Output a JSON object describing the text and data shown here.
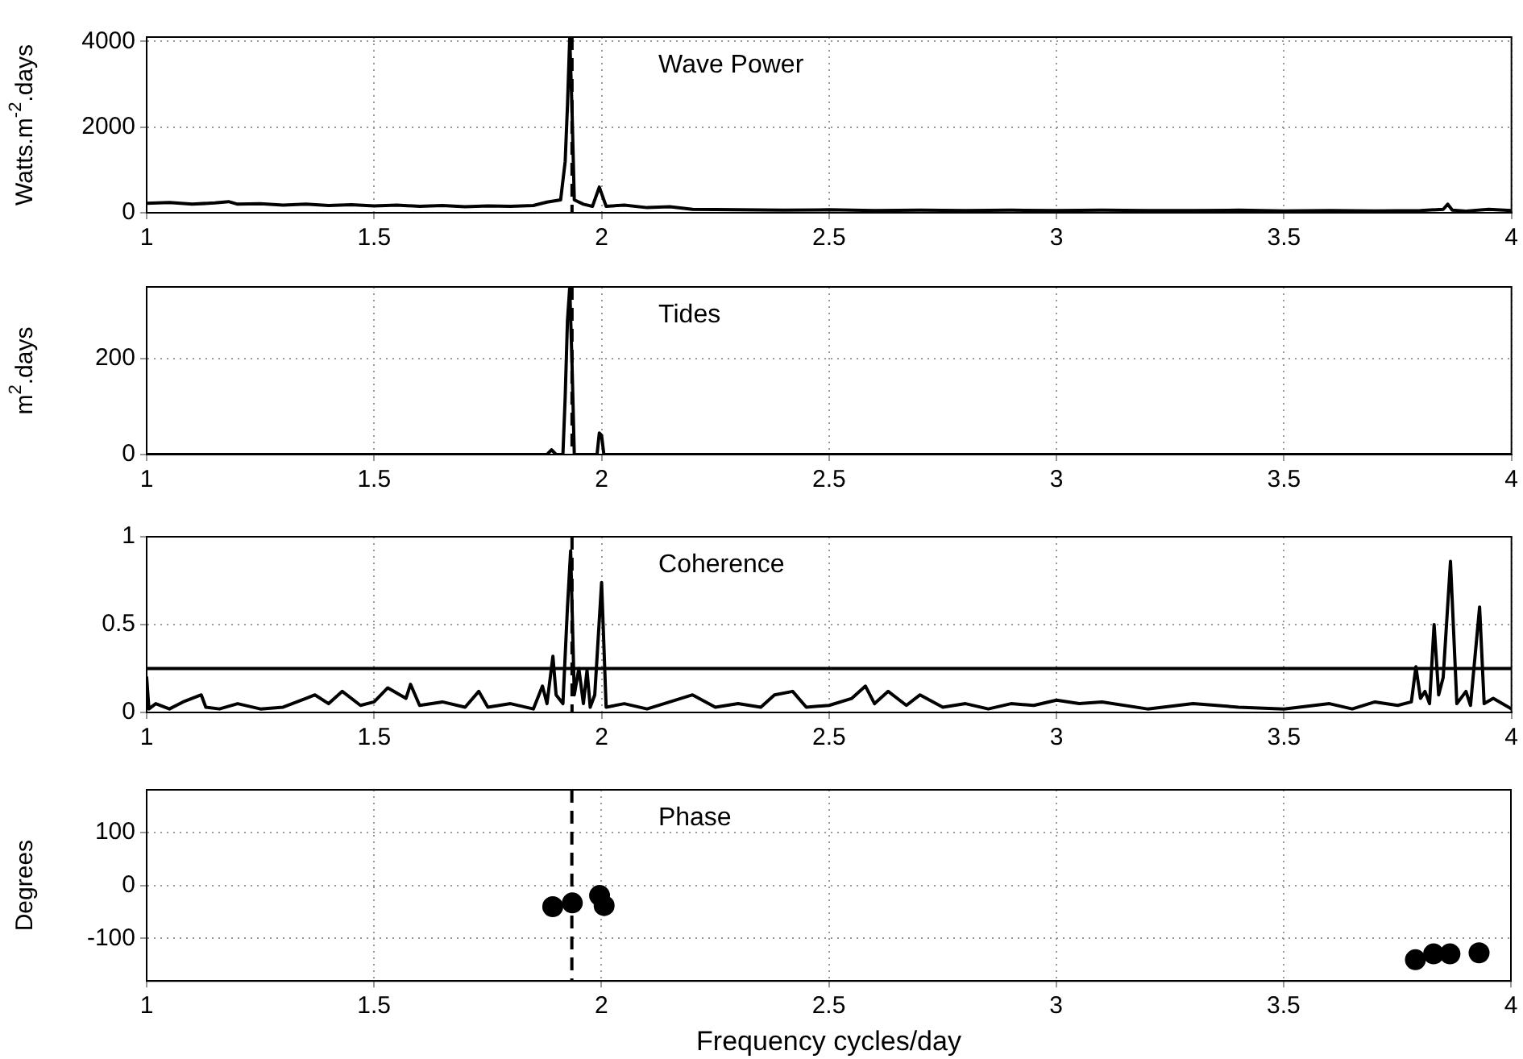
{
  "chart_data": [
    {
      "type": "line",
      "title": "Wave Power",
      "ylabel": "Watts.m$^{-2}$.days",
      "color": "#000000",
      "line_style": "solid",
      "x": [
        1.0,
        1.05,
        1.1,
        1.15,
        1.18,
        1.2,
        1.25,
        1.3,
        1.35,
        1.4,
        1.45,
        1.5,
        1.55,
        1.6,
        1.65,
        1.7,
        1.75,
        1.8,
        1.85,
        1.88,
        1.91,
        1.92,
        1.925,
        1.93,
        1.935,
        1.94,
        1.96,
        1.98,
        1.995,
        2.0,
        2.01,
        2.05,
        2.1,
        2.15,
        2.2,
        2.3,
        2.4,
        2.5,
        2.6,
        2.7,
        2.8,
        2.9,
        3.0,
        3.1,
        3.2,
        3.3,
        3.4,
        3.5,
        3.6,
        3.7,
        3.8,
        3.85,
        3.86,
        3.87,
        3.9,
        3.95,
        4.0
      ],
      "values": [
        220,
        240,
        200,
        230,
        260,
        200,
        210,
        180,
        200,
        170,
        190,
        160,
        180,
        150,
        170,
        140,
        160,
        150,
        170,
        250,
        300,
        1200,
        2500,
        4100,
        2400,
        300,
        200,
        150,
        600,
        450,
        150,
        180,
        120,
        140,
        80,
        70,
        60,
        70,
        50,
        60,
        50,
        60,
        50,
        60,
        50,
        50,
        60,
        40,
        50,
        40,
        50,
        80,
        200,
        60,
        40,
        80,
        50
      ],
      "xlim": [
        1,
        4
      ],
      "xticks": [
        1,
        1.5,
        2,
        2.5,
        3,
        3.5,
        4
      ],
      "ylim": [
        0,
        4100
      ],
      "yticks": [
        0,
        2000,
        4000
      ],
      "grid": true,
      "ref_lines": [
        {
          "axis": "x",
          "value": 1.935,
          "line_style": "dashed",
          "color": "#000000"
        }
      ]
    },
    {
      "type": "line",
      "title": "Tides",
      "ylabel": "m$^{2}$.days",
      "color": "#000000",
      "line_style": "solid",
      "x": [
        1.0,
        1.88,
        1.89,
        1.9,
        1.915,
        1.92,
        1.925,
        1.93,
        1.935,
        1.94,
        1.99,
        1.995,
        2.0,
        2.005,
        4.0
      ],
      "values": [
        0,
        0,
        10,
        0,
        0,
        120,
        280,
        350,
        190,
        0,
        0,
        45,
        40,
        0,
        0
      ],
      "xlim": [
        1,
        4
      ],
      "xticks": [
        1,
        1.5,
        2,
        2.5,
        3,
        3.5,
        4
      ],
      "ylim": [
        0,
        350
      ],
      "yticks": [
        0,
        200
      ],
      "grid": true,
      "ref_lines": [
        {
          "axis": "x",
          "value": 1.935,
          "line_style": "dashed",
          "color": "#000000"
        }
      ]
    },
    {
      "type": "line",
      "title": "Coherence",
      "color": "#000000",
      "line_style": "solid",
      "x": [
        1.0,
        1.005,
        1.02,
        1.05,
        1.08,
        1.12,
        1.13,
        1.16,
        1.2,
        1.25,
        1.3,
        1.35,
        1.37,
        1.4,
        1.43,
        1.47,
        1.5,
        1.53,
        1.57,
        1.58,
        1.6,
        1.65,
        1.7,
        1.73,
        1.75,
        1.8,
        1.85,
        1.87,
        1.88,
        1.893,
        1.9,
        1.915,
        1.925,
        1.932,
        1.94,
        1.95,
        1.96,
        1.968,
        1.975,
        1.985,
        2.0,
        2.01,
        2.05,
        2.1,
        2.15,
        2.2,
        2.25,
        2.3,
        2.35,
        2.38,
        2.42,
        2.45,
        2.5,
        2.55,
        2.58,
        2.6,
        2.63,
        2.67,
        2.7,
        2.75,
        2.8,
        2.85,
        2.9,
        2.95,
        3.0,
        3.05,
        3.1,
        3.2,
        3.3,
        3.4,
        3.5,
        3.6,
        3.65,
        3.7,
        3.75,
        3.78,
        3.79,
        3.8,
        3.81,
        3.82,
        3.83,
        3.84,
        3.85,
        3.866,
        3.88,
        3.9,
        3.91,
        3.93,
        3.94,
        3.96,
        4.0
      ],
      "values": [
        0.2,
        0.02,
        0.05,
        0.02,
        0.06,
        0.1,
        0.03,
        0.02,
        0.05,
        0.02,
        0.03,
        0.08,
        0.1,
        0.05,
        0.12,
        0.04,
        0.06,
        0.14,
        0.08,
        0.16,
        0.04,
        0.06,
        0.03,
        0.12,
        0.03,
        0.05,
        0.02,
        0.15,
        0.05,
        0.32,
        0.1,
        0.05,
        0.6,
        0.92,
        0.1,
        0.25,
        0.05,
        0.24,
        0.03,
        0.1,
        0.74,
        0.03,
        0.05,
        0.02,
        0.06,
        0.1,
        0.03,
        0.05,
        0.03,
        0.1,
        0.12,
        0.03,
        0.04,
        0.08,
        0.15,
        0.05,
        0.12,
        0.04,
        0.1,
        0.03,
        0.05,
        0.02,
        0.05,
        0.04,
        0.07,
        0.05,
        0.06,
        0.02,
        0.05,
        0.03,
        0.02,
        0.05,
        0.02,
        0.06,
        0.04,
        0.06,
        0.26,
        0.08,
        0.12,
        0.05,
        0.5,
        0.1,
        0.2,
        0.86,
        0.05,
        0.12,
        0.04,
        0.6,
        0.05,
        0.08,
        0.02
      ],
      "xlim": [
        1,
        4
      ],
      "xticks": [
        1,
        1.5,
        2,
        2.5,
        3,
        3.5,
        4
      ],
      "ylim": [
        0,
        1
      ],
      "yticks": [
        0,
        0.5,
        1
      ],
      "grid": true,
      "ref_lines": [
        {
          "axis": "x",
          "value": 1.935,
          "line_style": "dashed",
          "color": "#000000"
        },
        {
          "axis": "y",
          "value": 0.25,
          "line_style": "solid",
          "color": "#000000"
        }
      ]
    },
    {
      "type": "scatter",
      "title": "Phase",
      "xlabel": "Frequency cycles/day",
      "ylabel": "Degrees",
      "color": "#000000",
      "marker": "circle",
      "x": [
        1.893,
        1.936,
        1.996,
        2.006,
        3.79,
        3.83,
        3.866,
        3.93
      ],
      "values": [
        -40,
        -33,
        -19,
        -38,
        -140,
        -129,
        -129,
        -127
      ],
      "xlim": [
        1,
        4
      ],
      "xticks": [
        1,
        1.5,
        2,
        2.5,
        3,
        3.5,
        4
      ],
      "ylim": [
        -180,
        180
      ],
      "yticks": [
        -100,
        0,
        100
      ],
      "grid": true,
      "ref_lines": [
        {
          "axis": "x",
          "value": 1.935,
          "line_style": "dashed",
          "color": "#000000"
        }
      ]
    }
  ]
}
